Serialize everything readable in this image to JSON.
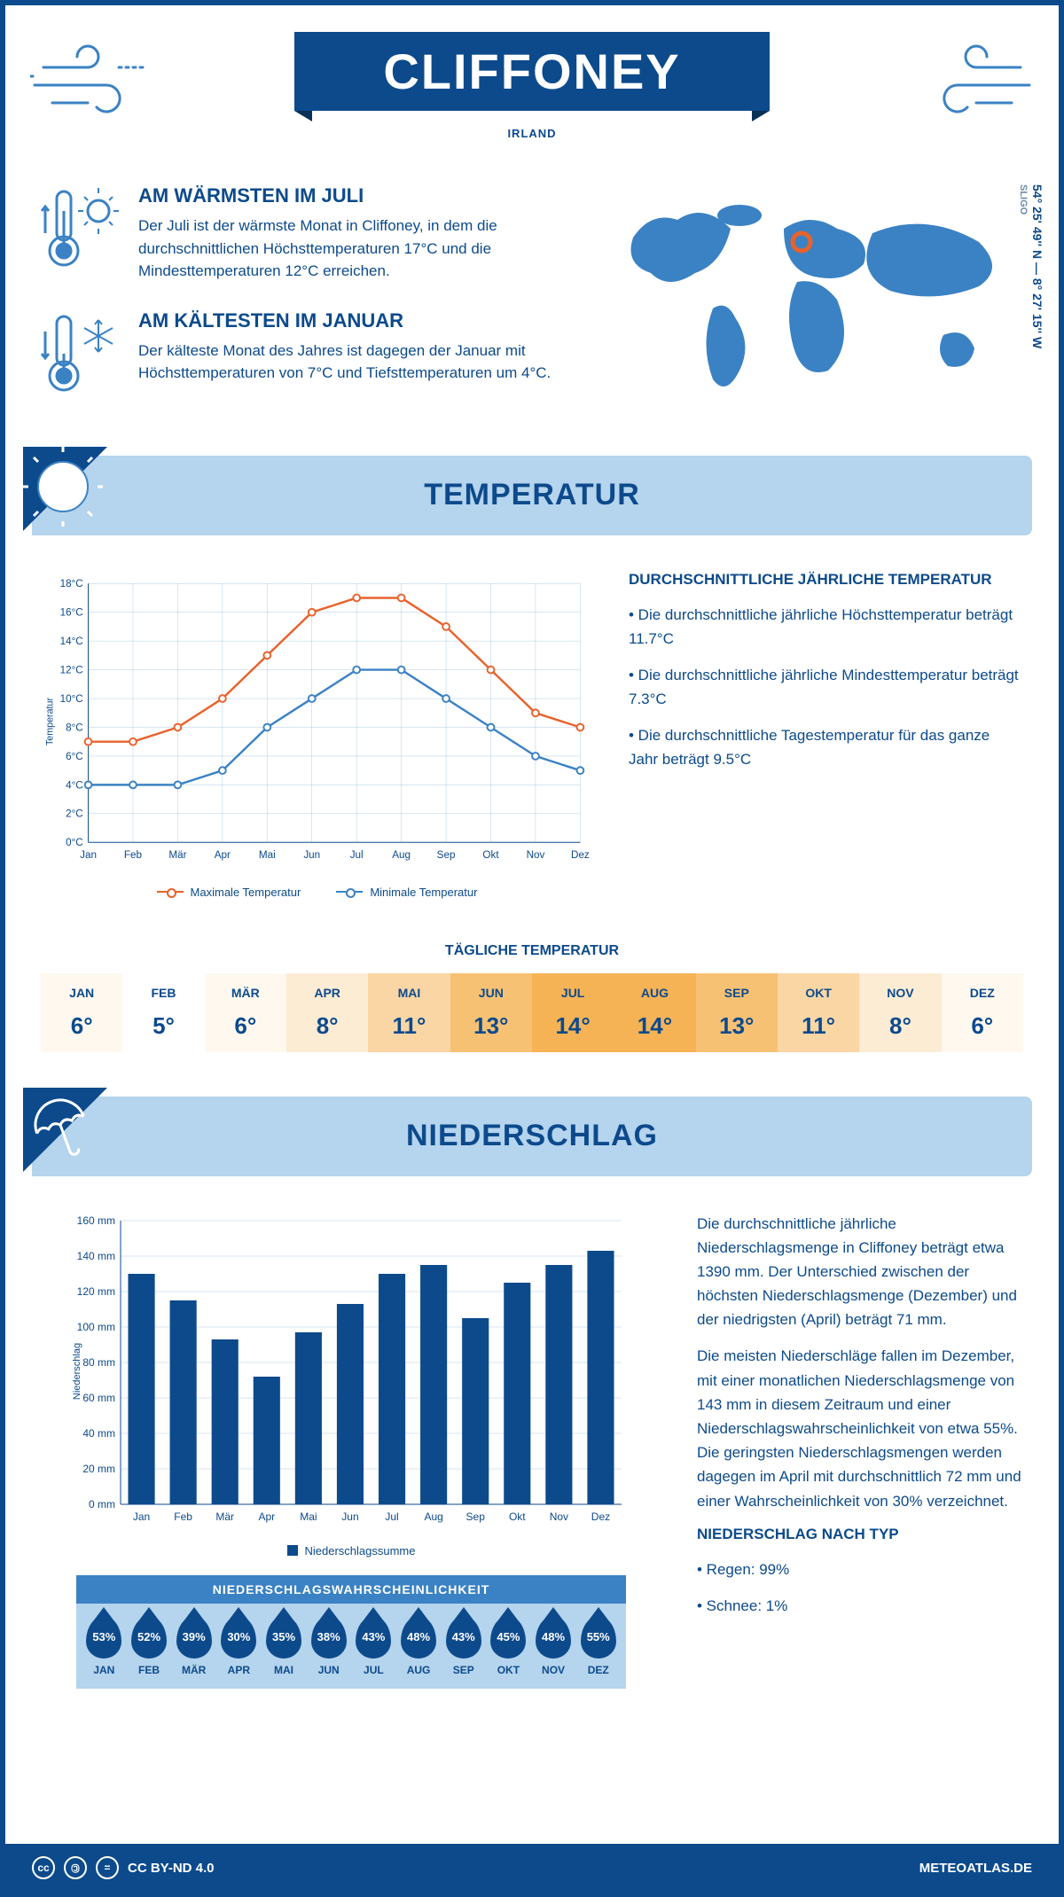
{
  "header": {
    "title": "CLIFFONEY",
    "subtitle": "IRLAND"
  },
  "coords": {
    "region": "SLIGO",
    "lat": "54° 25' 49'' N",
    "lon": "8° 27' 15'' W"
  },
  "intro": {
    "warm": {
      "title": "AM WÄRMSTEN IM JULI",
      "text": "Der Juli ist der wärmste Monat in Cliffoney, in dem die durchschnittlichen Höchsttemperaturen 17°C und die Mindesttemperaturen 12°C erreichen."
    },
    "cold": {
      "title": "AM KÄLTESTEN IM JANUAR",
      "text": "Der kälteste Monat des Jahres ist dagegen der Januar mit Höchsttemperaturen von 7°C und Tiefsttemperaturen um 4°C."
    }
  },
  "temperature": {
    "section_title": "TEMPERATUR",
    "avg_title": "DURCHSCHNITTLICHE JÄHRLICHE TEMPERATUR",
    "bullets": [
      "• Die durchschnittliche jährliche Höchsttemperatur beträgt 11.7°C",
      "• Die durchschnittliche jährliche Mindesttemperatur beträgt 7.3°C",
      "• Die durchschnittliche Tagestemperatur für das ganze Jahr beträgt 9.5°C"
    ],
    "chart": {
      "months": [
        "Jan",
        "Feb",
        "Mär",
        "Apr",
        "Mai",
        "Jun",
        "Jul",
        "Aug",
        "Sep",
        "Okt",
        "Nov",
        "Dez"
      ],
      "max_values": [
        7,
        7,
        8,
        10,
        13,
        16,
        17,
        17,
        15,
        12,
        9,
        8
      ],
      "min_values": [
        4,
        4,
        4,
        5,
        8,
        10,
        12,
        12,
        10,
        8,
        6,
        5
      ],
      "max_color": "#e8622c",
      "min_color": "#3b82c4",
      "ylim": [
        0,
        18
      ],
      "ytick_step": 2,
      "ylabel": "Temperatur",
      "legend_max": "Maximale Temperatur",
      "legend_min": "Minimale Temperatur"
    },
    "daily_title": "TÄGLICHE TEMPERATUR",
    "daily": {
      "months": [
        "JAN",
        "FEB",
        "MÄR",
        "APR",
        "MAI",
        "JUN",
        "JUL",
        "AUG",
        "SEP",
        "OKT",
        "NOV",
        "DEZ"
      ],
      "values": [
        "6°",
        "5°",
        "6°",
        "8°",
        "11°",
        "13°",
        "14°",
        "14°",
        "13°",
        "11°",
        "8°",
        "6°"
      ],
      "colors": [
        "#fef8ee",
        "#ffffff",
        "#fef8ee",
        "#fdecd4",
        "#fad6a5",
        "#f7c173",
        "#f5b355",
        "#f5b355",
        "#f7c173",
        "#fad6a5",
        "#fdecd4",
        "#fef8ee"
      ]
    }
  },
  "precipitation": {
    "section_title": "NIEDERSCHLAG",
    "text1": "Die durchschnittliche jährliche Niederschlagsmenge in Cliffoney beträgt etwa 1390 mm. Der Unterschied zwischen der höchsten Niederschlagsmenge (Dezember) und der niedrigsten (April) beträgt 71 mm.",
    "text2": "Die meisten Niederschläge fallen im Dezember, mit einer monatlichen Niederschlagsmenge von 143 mm in diesem Zeitraum und einer Niederschlagswahrscheinlichkeit von etwa 55%. Die geringsten Niederschlagsmengen werden dagegen im April mit durchschnittlich 72 mm und einer Wahrscheinlichkeit von 30% verzeichnet.",
    "type_title": "NIEDERSCHLAG NACH TYP",
    "type_bullets": [
      "• Regen: 99%",
      "• Schnee: 1%"
    ],
    "chart": {
      "months": [
        "Jan",
        "Feb",
        "Mär",
        "Apr",
        "Mai",
        "Jun",
        "Jul",
        "Aug",
        "Sep",
        "Okt",
        "Nov",
        "Dez"
      ],
      "values": [
        130,
        115,
        93,
        72,
        97,
        113,
        130,
        135,
        105,
        125,
        135,
        143
      ],
      "bar_color": "#0c4a8c",
      "ylim": [
        0,
        160
      ],
      "ytick_step": 20,
      "ylabel": "Niederschlag",
      "legend": "Niederschlagssumme"
    },
    "prob_title": "NIEDERSCHLAGSWAHRSCHEINLICHKEIT",
    "prob": {
      "months": [
        "JAN",
        "FEB",
        "MÄR",
        "APR",
        "MAI",
        "JUN",
        "JUL",
        "AUG",
        "SEP",
        "OKT",
        "NOV",
        "DEZ"
      ],
      "values": [
        "53%",
        "52%",
        "39%",
        "30%",
        "35%",
        "38%",
        "43%",
        "48%",
        "43%",
        "45%",
        "48%",
        "55%"
      ]
    }
  },
  "footer": {
    "license": "CC BY-ND 4.0",
    "site": "METEOATLAS.DE"
  }
}
